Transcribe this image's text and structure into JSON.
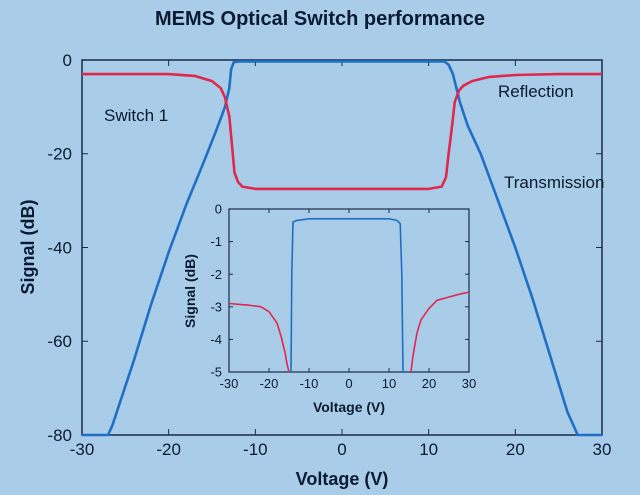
{
  "chart_data": [
    {
      "type": "line",
      "title": "MEMS Optical Switch performance",
      "xlabel": "Voltage (V)",
      "ylabel": "Signal (dB)",
      "xlim": [
        -30,
        30
      ],
      "ylim": [
        -80,
        0
      ],
      "xticks": [
        -30,
        -20,
        -10,
        0,
        10,
        20,
        30
      ],
      "yticks": [
        0,
        -20,
        -40,
        -60,
        -80
      ],
      "grid": false,
      "annotations": [
        "Switch 1",
        "Reflection",
        "Transmission"
      ],
      "series": [
        {
          "name": "Transmission",
          "color": "#1f6fc4",
          "x": [
            -30,
            -27,
            -26.5,
            -24,
            -22,
            -20,
            -18,
            -16,
            -14.5,
            -13.5,
            -13,
            -12.8,
            -12.5,
            -12,
            -10,
            0,
            10,
            11.8,
            12.3,
            12.8,
            13.2,
            13.6,
            14.5,
            16,
            18,
            20,
            22,
            24,
            26,
            27.2,
            28,
            30
          ],
          "y": [
            -80,
            -80,
            -78,
            -64,
            -52,
            -41,
            -31,
            -22,
            -15,
            -10,
            -6,
            -2,
            -0.5,
            -0.3,
            -0.3,
            -0.3,
            -0.3,
            -0.3,
            -1,
            -3,
            -6,
            -9,
            -14,
            -20,
            -30,
            -40,
            -51,
            -63,
            -75,
            -80,
            -80,
            -80
          ]
        },
        {
          "name": "Reflection",
          "color": "#e0284f",
          "x": [
            -30,
            -20,
            -17,
            -15,
            -14,
            -13.5,
            -13,
            -12.7,
            -12.4,
            -12,
            -11.5,
            -10,
            0,
            10,
            11.5,
            12,
            12.3,
            12.7,
            13,
            13.5,
            14,
            15,
            17,
            20,
            25,
            30
          ],
          "y": [
            -3,
            -3,
            -3.4,
            -4.5,
            -6,
            -8,
            -12,
            -18,
            -24,
            -26,
            -27,
            -27.5,
            -27.5,
            -27.5,
            -27,
            -25,
            -20,
            -14,
            -9,
            -6.5,
            -5.5,
            -4.5,
            -3.6,
            -3.2,
            -3,
            -3
          ]
        }
      ]
    },
    {
      "type": "line",
      "xlabel": "Voltage (V)",
      "ylabel": "Signal (dB)",
      "xlim": [
        -30,
        30
      ],
      "ylim": [
        -5,
        0
      ],
      "xticks": [
        -30,
        -20,
        -10,
        0,
        10,
        20,
        30
      ],
      "yticks": [
        0,
        -1,
        -2,
        -3,
        -4,
        -5
      ],
      "grid": false,
      "series": [
        {
          "color": "#1f6fc4",
          "x": [
            -14.5,
            -14.3,
            -14,
            -13,
            -10,
            0,
            10,
            12,
            12.8,
            13.2,
            13.5
          ],
          "y": [
            -5,
            -2,
            -0.4,
            -0.35,
            -0.3,
            -0.3,
            -0.3,
            -0.35,
            -0.45,
            -2,
            -5
          ]
        },
        {
          "color": "#e0284f",
          "x": [
            -30,
            -25,
            -22,
            -20,
            -18,
            -17,
            -16,
            -15.5,
            -15
          ],
          "y": [
            -2.9,
            -2.95,
            -3.0,
            -3.15,
            -3.5,
            -3.9,
            -4.4,
            -4.75,
            -5
          ]
        },
        {
          "color": "#e0284f",
          "x": [
            15.5,
            16,
            17,
            18,
            20,
            22,
            25,
            28,
            30
          ],
          "y": [
            -5,
            -4.5,
            -3.8,
            -3.4,
            -3.05,
            -2.8,
            -2.7,
            -2.6,
            -2.55
          ]
        }
      ]
    }
  ]
}
